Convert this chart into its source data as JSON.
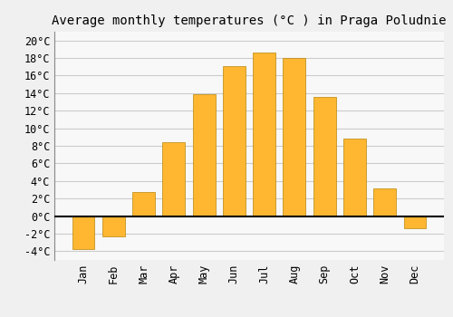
{
  "title": "Average monthly temperatures (°C ) in Praga Poludnie",
  "months": [
    "Jan",
    "Feb",
    "Mar",
    "Apr",
    "May",
    "Jun",
    "Jul",
    "Aug",
    "Sep",
    "Oct",
    "Nov",
    "Dec"
  ],
  "temperatures": [
    -3.8,
    -2.3,
    2.7,
    8.4,
    13.9,
    17.1,
    18.6,
    18.0,
    13.6,
    8.8,
    3.1,
    -1.4
  ],
  "bar_color_top": "#FFB732",
  "bar_color_bottom": "#FFA000",
  "bar_edge_color": "#B8860B",
  "background_color": "#F0F0F0",
  "plot_bg_color": "#F8F8F8",
  "grid_color": "#CCCCCC",
  "ylim": [
    -5,
    21
  ],
  "yticks": [
    -4,
    -2,
    0,
    2,
    4,
    6,
    8,
    10,
    12,
    14,
    16,
    18,
    20
  ],
  "title_fontsize": 10,
  "tick_fontsize": 8.5
}
